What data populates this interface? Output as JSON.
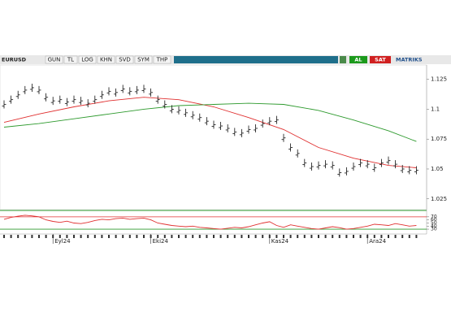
{
  "toolbar": {
    "symbol": "EURUSD",
    "buttons": [
      "GUN",
      "TL",
      "LOG",
      "KHN",
      "SVD",
      "SYM",
      "THP"
    ],
    "buy": "AL",
    "sell": "SAT",
    "brand": "MATRIKS"
  },
  "chart_data": {
    "type": "ohlc",
    "categories": [
      null,
      null,
      null,
      null,
      null,
      null,
      null,
      "Eyl24",
      null,
      null,
      null,
      null,
      null,
      null,
      null,
      null,
      null,
      null,
      null,
      null,
      null,
      "Eki24",
      null,
      null,
      null,
      null,
      null,
      null,
      null,
      null,
      null,
      null,
      null,
      null,
      null,
      null,
      null,
      null,
      "Kas24",
      null,
      null,
      null,
      null,
      null,
      null,
      null,
      null,
      null,
      null,
      null,
      null,
      null,
      "Ara24",
      null,
      null,
      null,
      null,
      null,
      null,
      null
    ],
    "values": [
      1.104,
      1.108,
      1.112,
      1.116,
      1.118,
      1.116,
      1.11,
      1.107,
      1.108,
      1.106,
      1.108,
      1.107,
      1.105,
      1.108,
      1.112,
      1.115,
      1.114,
      1.117,
      1.115,
      1.116,
      1.117,
      1.114,
      1.108,
      1.104,
      1.1,
      1.099,
      1.097,
      1.095,
      1.093,
      1.09,
      1.087,
      1.086,
      1.084,
      1.081,
      1.08,
      1.083,
      1.084,
      1.088,
      1.09,
      1.091,
      1.076,
      1.068,
      1.063,
      1.055,
      1.052,
      1.053,
      1.054,
      1.053,
      1.047,
      1.048,
      1.052,
      1.055,
      1.054,
      1.051,
      1.055,
      1.057,
      1.054,
      1.05,
      1.049,
      1.049
    ],
    "color": "#111111",
    "averages": [
      {
        "color": "#e03030",
        "x": [
          0,
          5,
          10,
          15,
          20,
          25,
          30,
          35,
          40,
          45,
          50,
          55,
          59
        ],
        "values": [
          1.089,
          1.096,
          1.102,
          1.107,
          1.11,
          1.108,
          1.102,
          1.093,
          1.083,
          1.068,
          1.059,
          1.053,
          1.051
        ]
      },
      {
        "color": "#2e9a2e",
        "x": [
          0,
          5,
          10,
          15,
          20,
          25,
          30,
          35,
          40,
          45,
          50,
          55,
          59
        ],
        "values": [
          1.085,
          1.088,
          1.092,
          1.096,
          1.1,
          1.103,
          1.104,
          1.105,
          1.104,
          1.099,
          1.091,
          1.082,
          1.073
        ]
      }
    ],
    "ylim": [
      1.016,
      1.137
    ],
    "yticks": [
      1.125,
      1.1,
      1.075,
      1.05,
      1.025
    ],
    "oscillator": {
      "color": "#e03030",
      "values": [
        62,
        68,
        72,
        75,
        73,
        70,
        60,
        55,
        52,
        56,
        50,
        48,
        52,
        58,
        62,
        60,
        64,
        66,
        62,
        64,
        66,
        60,
        50,
        46,
        42,
        40,
        38,
        40,
        36,
        34,
        32,
        30,
        33,
        36,
        34,
        38,
        44,
        50,
        54,
        42,
        36,
        44,
        40,
        36,
        32,
        30,
        34,
        38,
        35,
        30,
        32,
        36,
        40,
        46,
        44,
        42,
        48,
        44,
        40,
        42
      ],
      "ylim": [
        17,
        88
      ],
      "yticks": [
        70,
        60,
        50,
        40,
        30
      ],
      "levels": [
        {
          "value": 70,
          "color": "#e03030"
        },
        {
          "value": 30,
          "color": "#2e9a2e"
        }
      ]
    }
  }
}
